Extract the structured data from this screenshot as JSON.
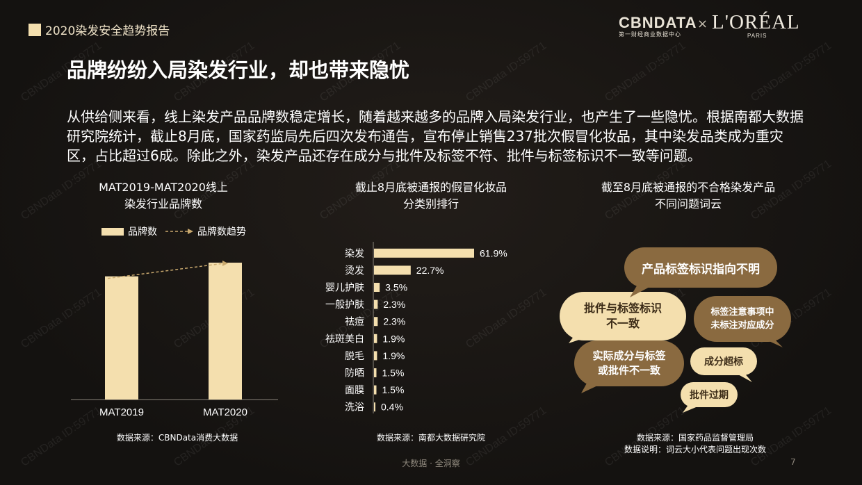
{
  "header": {
    "tag": "2020染发安全趋势报告",
    "logo_cbn": "CBNDATA",
    "logo_cbn_sub": "第一财经商业数据中心",
    "logo_cross": "×",
    "logo_loreal": "L'ORÉAL",
    "logo_paris": "PARIS"
  },
  "headline": "品牌纷纷入局染发行业，却也带来隐忧",
  "paragraph": "从供给侧来看，线上染发产品品牌数稳定增长，随着越来越多的品牌入局染发行业，也产生了一些隐忧。根据南都大数据研究院统计，截止8月底，国家药监局先后四次发布通告，宣布停止销售237批次假冒化妆品，其中染发品类成为重灾区，占比超过6成。除此之外，染发产品还存在成分与批件及标签不符、批件与标签标识不一致等问题。",
  "watermark": "CBNData ID:59771",
  "chart1": {
    "title_line1": "MAT2019-MAT2020线上",
    "title_line2": "染发行业品牌数",
    "legend_bar": "品牌数",
    "legend_trend": "品牌数趋势",
    "source": "数据来源：CBNData消费大数据"
  },
  "chart2": {
    "title_line1": "截止8月底被通报的假冒化妆品",
    "title_line2": "分类别排行",
    "source": "数据来源：南都大数据研究院"
  },
  "chart3": {
    "title_line1": "截至8月底被通报的不合格染发产品",
    "title_line2": "不同问题词云",
    "source_line1": "数据来源：国家药品监督管理局",
    "source_line2": "数据说明：词云大小代表问题出现次数",
    "bubbles": [
      {
        "text": "产品标签标识指向不明",
        "style": "dark"
      },
      {
        "text": "批件与标签标识\n不一致",
        "style": "light"
      },
      {
        "text": "标签注意事项中\n未标注对应成分",
        "style": "dark"
      },
      {
        "text": "实际成分与标签\n或批件不一致",
        "style": "dark"
      },
      {
        "text": "成分超标",
        "style": "light"
      },
      {
        "text": "批件过期",
        "style": "light"
      }
    ]
  },
  "footer": "大数据 · 全洞察",
  "page_number": "7",
  "colors": {
    "accent": "#f4dfae",
    "dark_bubble": "#8a6a40",
    "background": "#181513"
  },
  "chart_data": [
    {
      "type": "bar",
      "title": "MAT2019-MAT2020线上染发行业品牌数",
      "categories": [
        "MAT2019",
        "MAT2020"
      ],
      "series": [
        {
          "name": "品牌数",
          "values": [
            0.9,
            1.0
          ]
        }
      ],
      "trend_name": "品牌数趋势",
      "note": "no value labels shown"
    },
    {
      "type": "bar",
      "orientation": "horizontal",
      "title": "截止8月底被通报的假冒化妆品分类别排行",
      "categories": [
        "染发",
        "烫发",
        "婴儿护肤",
        "一般护肤",
        "祛痘",
        "祛斑美白",
        "脱毛",
        "防晒",
        "面膜",
        "洗浴"
      ],
      "values": [
        61.9,
        22.7,
        3.5,
        2.3,
        2.3,
        1.9,
        1.9,
        1.5,
        1.5,
        0.4
      ],
      "labels": [
        "61.9%",
        "22.7%",
        "3.5%",
        "2.3%",
        "2.3%",
        "1.9%",
        "1.9%",
        "1.5%",
        "1.5%",
        "0.4%"
      ],
      "unit": "%"
    }
  ]
}
